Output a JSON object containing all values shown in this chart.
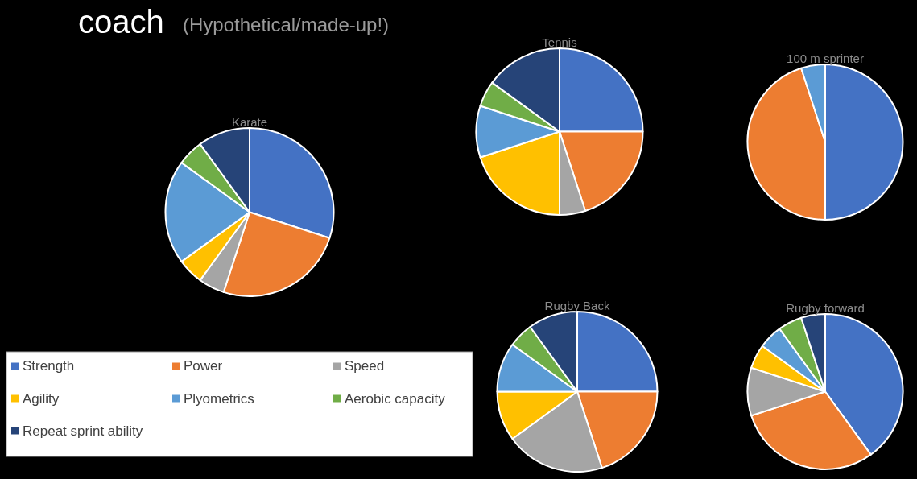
{
  "chart_data": [
    {
      "type": "pie",
      "title": "Karate",
      "annotations": [
        "coach",
        "(Hypothetical/made-up!)"
      ],
      "legend": "bottom left",
      "categories": [
        "Strength",
        "Power",
        "Speed",
        "Agility",
        "Plyometrics",
        "Aerobic capacity",
        "Repeat sprint ability"
      ],
      "values": [
        30,
        25,
        5,
        5,
        20,
        5,
        10
      ],
      "colors": [
        "#4472c4",
        "#ed7d31",
        "#a5a5a5",
        "#ffc000",
        "#5b9bd5",
        "#70ad47",
        "#264478"
      ]
    },
    {
      "type": "pie",
      "title": "Tennis",
      "categories": [
        null,
        null,
        null,
        null,
        null,
        null,
        null
      ],
      "values": [
        25,
        20,
        5,
        20,
        10,
        5,
        15
      ],
      "colors": [
        "#4472c4",
        "#ed7d31",
        "#a5a5a5",
        "#ffc000",
        "#5b9bd5",
        "#70ad47",
        "#264478"
      ]
    },
    {
      "type": "pie",
      "title": "100 m sprinter",
      "categories": [
        null,
        null,
        null
      ],
      "values": [
        50,
        45,
        5
      ],
      "colors": [
        "#4472c4",
        "#ed7d31",
        "#5b9bd5"
      ]
    },
    {
      "type": "pie",
      "title": "Rugby Back",
      "categories": [
        null,
        null,
        null,
        null,
        null,
        null,
        null
      ],
      "values": [
        25,
        20,
        20,
        10,
        10,
        5,
        10
      ],
      "colors": [
        "#4472c4",
        "#ed7d31",
        "#a5a5a5",
        "#ffc000",
        "#5b9bd5",
        "#70ad47",
        "#264478"
      ]
    },
    {
      "type": "pie",
      "title": "Rugby forward",
      "categories": [
        null,
        null,
        null,
        null,
        null,
        null,
        null
      ],
      "values": [
        40,
        30,
        10,
        5,
        5,
        5,
        5
      ],
      "colors": [
        "#4472c4",
        "#ed7d31",
        "#a5a5a5",
        "#ffc000",
        "#5b9bd5",
        "#70ad47",
        "#264478"
      ]
    }
  ]
}
